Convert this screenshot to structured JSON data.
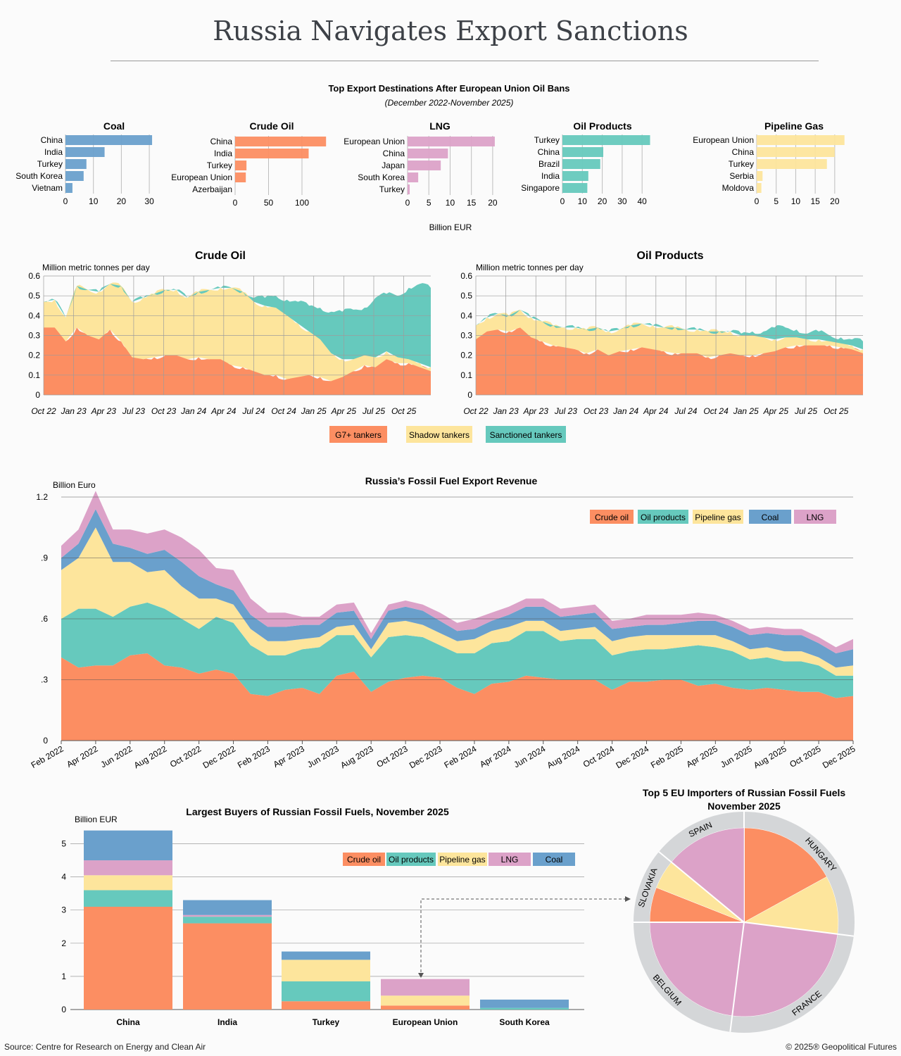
{
  "title": "Russia Navigates Export Sanctions",
  "source": "Source: Centre for Research on Energy and Clean Air",
  "copyright": "© 2025® Geopolitical Futures",
  "colors": {
    "coal": "#6aa0cc",
    "crude": "#fc8e62",
    "lng": "#dca2c8",
    "products": "#66c9bd",
    "gas": "#fde59c",
    "grid": "#999999",
    "ring": "#d4d6d8"
  },
  "destinations": {
    "title": "Top Export Destinations After European Union Oil Bans",
    "subtitle": "(December 2022-November 2025)",
    "axis_label": "Billion EUR",
    "panels": [
      {
        "title": "Coal",
        "color": "coal",
        "max": 33,
        "ticks": [
          0,
          10,
          20,
          30
        ],
        "categories": [
          "China",
          "India",
          "Turkey",
          "South Korea",
          "Vietnam"
        ],
        "values": [
          31,
          14,
          7.5,
          6.5,
          2.5
        ]
      },
      {
        "title": "Crude Oil",
        "color": "crude",
        "max": 140,
        "ticks": [
          0,
          50,
          100
        ],
        "categories": [
          "China",
          "India",
          "Turkey",
          "European Union",
          "Azerbaijan"
        ],
        "values": [
          136,
          110,
          17,
          16,
          0
        ]
      },
      {
        "title": "LNG",
        "color": "lng",
        "max": 22,
        "ticks": [
          0,
          5,
          10,
          15,
          20
        ],
        "categories": [
          "European Union",
          "China",
          "Japan",
          "South Korea",
          "Turkey"
        ],
        "values": [
          20.5,
          9.5,
          7.8,
          2.5,
          0.5
        ]
      },
      {
        "title": "Oil Products",
        "color": "products",
        "max": 47,
        "ticks": [
          0,
          10,
          20,
          30,
          40
        ],
        "categories": [
          "Turkey",
          "China",
          "Brazil",
          "India",
          "Singapore"
        ],
        "values": [
          44,
          20.5,
          19,
          13,
          12.5
        ]
      },
      {
        "title": "Pipeline Gas",
        "color": "gas",
        "max": 24,
        "ticks": [
          0,
          5,
          10,
          15,
          20
        ],
        "categories": [
          "European Union",
          "China",
          "Turkey",
          "Serbia",
          "Moldova"
        ],
        "values": [
          22.5,
          20,
          18,
          1.5,
          1.2
        ]
      }
    ]
  },
  "tankers": {
    "y_label": "Million metric tonnes per day",
    "y_ticks": [
      0,
      0.1,
      0.2,
      0.3,
      0.4,
      0.5,
      0.6
    ],
    "y_tick_labels": [
      "0",
      "0.1",
      "0.2",
      "0.3",
      "0.4",
      "0.5",
      "0.6"
    ],
    "x_labels": [
      "Oct 22",
      "Jan 23",
      "Apr 23",
      "Jul 23",
      "Oct 23",
      "Jan 24",
      "Apr 24",
      "Jul 24",
      "Oct 24",
      "Jan 25",
      "Apr 25",
      "Jul 25",
      "Oct 25"
    ],
    "legend": [
      "G7+ tankers",
      "Shadow tankers",
      "Sanctioned tankers"
    ],
    "charts": [
      {
        "title": "Crude Oil",
        "g7": [
          0.34,
          0.34,
          0.27,
          0.34,
          0.3,
          0.28,
          0.33,
          0.27,
          0.19,
          0.18,
          0.19,
          0.2,
          0.2,
          0.18,
          0.19,
          0.18,
          0.18,
          0.15,
          0.14,
          0.12,
          0.1,
          0.1,
          0.08,
          0.09,
          0.1,
          0.09,
          0.07,
          0.09,
          0.12,
          0.15,
          0.14,
          0.18,
          0.16,
          0.16,
          0.14,
          0.12
        ],
        "shadow": [
          0.13,
          0.14,
          0.12,
          0.21,
          0.23,
          0.24,
          0.23,
          0.28,
          0.28,
          0.31,
          0.32,
          0.33,
          0.33,
          0.31,
          0.33,
          0.35,
          0.36,
          0.39,
          0.38,
          0.35,
          0.35,
          0.34,
          0.32,
          0.27,
          0.22,
          0.19,
          0.14,
          0.09,
          0.06,
          0.05,
          0.05,
          0.04,
          0.03,
          0.02,
          0.02,
          0.02
        ],
        "sanctioned": [
          0,
          0,
          0,
          0,
          0,
          0,
          0,
          0,
          0,
          0,
          0,
          0,
          0,
          0,
          0,
          0,
          0,
          0,
          0,
          0.02,
          0.04,
          0.06,
          0.08,
          0.11,
          0.13,
          0.16,
          0.21,
          0.24,
          0.25,
          0.24,
          0.3,
          0.29,
          0.31,
          0.36,
          0.4,
          0.4
        ]
      },
      {
        "title": "Oil Products",
        "g7": [
          0.28,
          0.32,
          0.33,
          0.32,
          0.34,
          0.29,
          0.27,
          0.25,
          0.24,
          0.23,
          0.21,
          0.23,
          0.2,
          0.22,
          0.23,
          0.24,
          0.23,
          0.22,
          0.21,
          0.21,
          0.21,
          0.19,
          0.2,
          0.21,
          0.2,
          0.2,
          0.21,
          0.22,
          0.24,
          0.25,
          0.25,
          0.25,
          0.25,
          0.24,
          0.23,
          0.21
        ],
        "shadow": [
          0.07,
          0.07,
          0.08,
          0.08,
          0.09,
          0.1,
          0.1,
          0.1,
          0.1,
          0.11,
          0.12,
          0.11,
          0.12,
          0.11,
          0.12,
          0.12,
          0.12,
          0.12,
          0.13,
          0.12,
          0.12,
          0.13,
          0.12,
          0.11,
          0.1,
          0.1,
          0.08,
          0.06,
          0.05,
          0.04,
          0.03,
          0.03,
          0.02,
          0.02,
          0.02,
          0.02
        ],
        "sanctioned": [
          0,
          0,
          0,
          0,
          0,
          0,
          0,
          0,
          0,
          0,
          0,
          0,
          0,
          0,
          0,
          0,
          0,
          0,
          0,
          0,
          0,
          0,
          0,
          0,
          0.01,
          0.02,
          0.03,
          0.06,
          0.05,
          0.04,
          0.03,
          0.04,
          0.03,
          0.03,
          0.03,
          0.04
        ]
      }
    ]
  },
  "revenue": {
    "title": "Russia’s Fossil Fuel Export Revenue",
    "y_label": "Billion Euro",
    "y_ticks": [
      0,
      0.3,
      0.6,
      0.9,
      1.2
    ],
    "y_tick_labels": [
      "0",
      ".3",
      ".6",
      ".9",
      "1.2"
    ],
    "x_labels": [
      "Feb 2022",
      "Apr 2022",
      "Jun 2022",
      "Aug 2022",
      "Oct 2022",
      "Dec 2022",
      "Feb 2023",
      "Apr 2023",
      "Jun 2023",
      "Aug 2023",
      "Oct 2023",
      "Dec 2023",
      "Feb 2024",
      "Apr 2024",
      "Jun 2024",
      "Aug 2024",
      "Oct 2024",
      "Dec 2024",
      "Feb 2025",
      "Apr 2025",
      "Jun 2025",
      "Aug 2025",
      "Oct 2025",
      "Dec 2025"
    ],
    "legend": [
      "Crude oil",
      "Oil products",
      "Pipeline gas",
      "Coal",
      "LNG"
    ],
    "series": {
      "crude": [
        0.41,
        0.36,
        0.37,
        0.37,
        0.42,
        0.43,
        0.37,
        0.36,
        0.33,
        0.35,
        0.33,
        0.23,
        0.22,
        0.25,
        0.26,
        0.23,
        0.32,
        0.34,
        0.24,
        0.29,
        0.31,
        0.32,
        0.31,
        0.26,
        0.23,
        0.28,
        0.29,
        0.32,
        0.31,
        0.3,
        0.3,
        0.3,
        0.25,
        0.29,
        0.29,
        0.3,
        0.3,
        0.27,
        0.28,
        0.26,
        0.25,
        0.26,
        0.25,
        0.24,
        0.24,
        0.21,
        0.22
      ],
      "products": [
        0.19,
        0.29,
        0.28,
        0.24,
        0.24,
        0.25,
        0.28,
        0.24,
        0.22,
        0.26,
        0.25,
        0.24,
        0.2,
        0.17,
        0.19,
        0.23,
        0.2,
        0.18,
        0.17,
        0.22,
        0.21,
        0.19,
        0.16,
        0.17,
        0.2,
        0.2,
        0.2,
        0.22,
        0.23,
        0.19,
        0.2,
        0.2,
        0.17,
        0.15,
        0.16,
        0.15,
        0.16,
        0.2,
        0.18,
        0.18,
        0.15,
        0.15,
        0.14,
        0.15,
        0.13,
        0.11,
        0.1
      ],
      "gas": [
        0.24,
        0.25,
        0.4,
        0.27,
        0.22,
        0.15,
        0.19,
        0.16,
        0.15,
        0.09,
        0.09,
        0.08,
        0.07,
        0.07,
        0.05,
        0.05,
        0.04,
        0.05,
        0.04,
        0.07,
        0.07,
        0.06,
        0.06,
        0.06,
        0.07,
        0.06,
        0.07,
        0.05,
        0.05,
        0.05,
        0.05,
        0.06,
        0.07,
        0.07,
        0.07,
        0.07,
        0.06,
        0.05,
        0.06,
        0.05,
        0.05,
        0.05,
        0.05,
        0.05,
        0.04,
        0.04,
        0.05
      ],
      "coal": [
        0.06,
        0.07,
        0.09,
        0.09,
        0.07,
        0.09,
        0.1,
        0.12,
        0.11,
        0.07,
        0.07,
        0.07,
        0.07,
        0.07,
        0.07,
        0.06,
        0.07,
        0.07,
        0.05,
        0.06,
        0.07,
        0.07,
        0.06,
        0.05,
        0.05,
        0.05,
        0.06,
        0.07,
        0.07,
        0.07,
        0.07,
        0.07,
        0.06,
        0.05,
        0.05,
        0.05,
        0.06,
        0.07,
        0.07,
        0.07,
        0.07,
        0.07,
        0.08,
        0.08,
        0.07,
        0.07,
        0.08
      ],
      "lng": [
        0.06,
        0.07,
        0.09,
        0.07,
        0.09,
        0.1,
        0.1,
        0.12,
        0.13,
        0.08,
        0.1,
        0.08,
        0.07,
        0.07,
        0.04,
        0.04,
        0.04,
        0.04,
        0.03,
        0.03,
        0.03,
        0.03,
        0.04,
        0.04,
        0.05,
        0.04,
        0.04,
        0.04,
        0.04,
        0.04,
        0.04,
        0.04,
        0.04,
        0.04,
        0.05,
        0.05,
        0.04,
        0.04,
        0.03,
        0.03,
        0.03,
        0.03,
        0.03,
        0.03,
        0.03,
        0.03,
        0.05
      ]
    }
  },
  "buyers": {
    "title": "Largest Buyers of Russian Fossil Fuels, November 2025",
    "y_label": "Billion EUR",
    "y_ticks": [
      0,
      1,
      2,
      3,
      4,
      5
    ],
    "y_tick_labels": [
      "0",
      "1",
      "2",
      "3",
      "4",
      "5"
    ],
    "categories": [
      "China",
      "India",
      "Turkey",
      "European Union",
      "South Korea"
    ],
    "legend": [
      "Crude oil",
      "Oil products",
      "Pipeline gas",
      "LNG",
      "Coal"
    ],
    "series": {
      "crude": [
        3.1,
        2.6,
        0.25,
        0.12,
        0
      ],
      "products": [
        0.5,
        0.2,
        0.6,
        0,
        0.05
      ],
      "gas": [
        0.45,
        0,
        0.65,
        0.3,
        0
      ],
      "lng": [
        0.45,
        0.05,
        0,
        0.5,
        0
      ],
      "coal": [
        0.9,
        0.45,
        0.25,
        0,
        0.25
      ]
    }
  },
  "eu_importers": {
    "title": "Top 5 EU Importers of Russian Fossil Fuels",
    "subtitle": "November 2025",
    "slices": [
      {
        "name": "HUNGARY",
        "value": 27,
        "pieces": [
          {
            "value": 17,
            "color": "crude"
          },
          {
            "value": 10,
            "color": "gas"
          }
        ]
      },
      {
        "name": "FRANCE",
        "value": 25,
        "pieces": [
          {
            "value": 25,
            "color": "lng"
          }
        ]
      },
      {
        "name": "BELGIUM",
        "value": 23,
        "pieces": [
          {
            "value": 23,
            "color": "lng"
          }
        ]
      },
      {
        "name": "SLOVAKIA",
        "value": 11,
        "pieces": [
          {
            "value": 6,
            "color": "crude"
          },
          {
            "value": 5,
            "color": "gas"
          }
        ]
      },
      {
        "name": "SPAIN",
        "value": 14,
        "pieces": [
          {
            "value": 14,
            "color": "lng"
          }
        ]
      }
    ]
  }
}
